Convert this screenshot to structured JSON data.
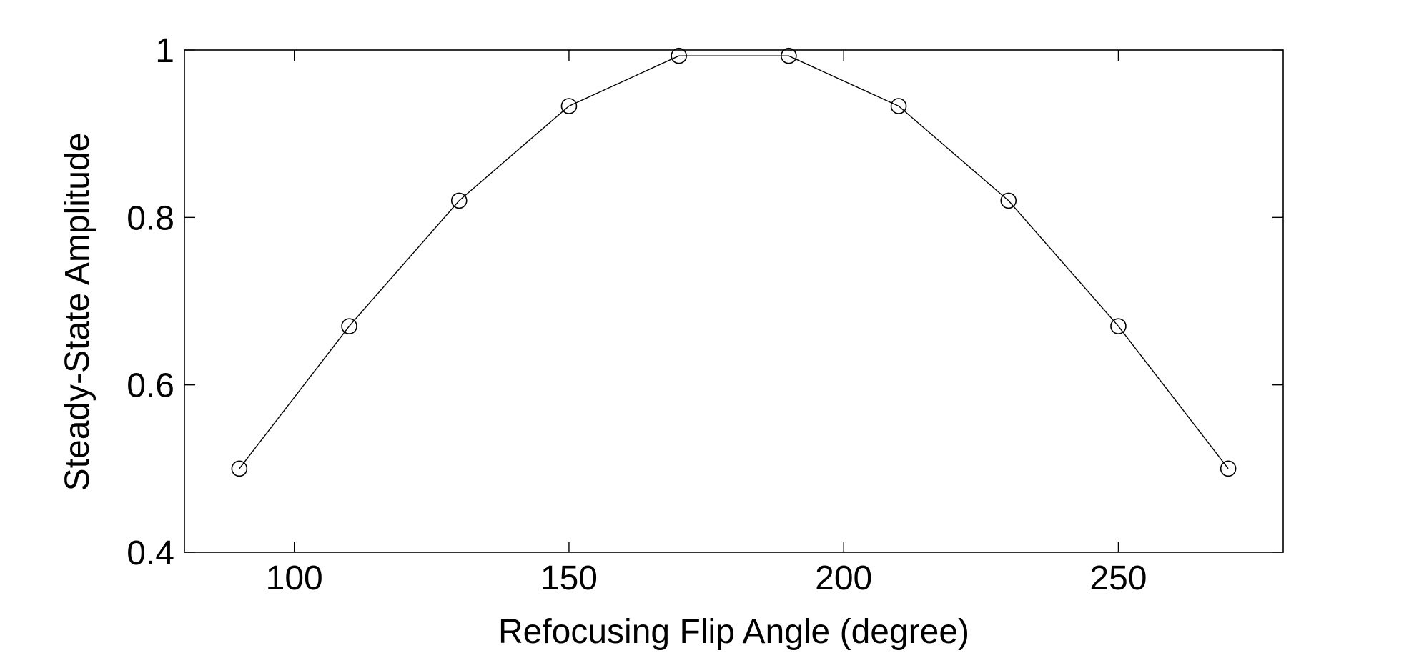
{
  "chart_data": {
    "type": "line",
    "title": "",
    "xlabel": "Refocusing Flip Angle (degree)",
    "ylabel": "Steady-State Amplitude",
    "xlim": [
      80,
      280
    ],
    "ylim": [
      0.4,
      1.0
    ],
    "xticks": [
      100,
      150,
      200,
      250
    ],
    "xtick_labels": [
      "100",
      "150",
      "200",
      "250"
    ],
    "yticks": [
      0.4,
      0.6,
      0.8,
      1.0
    ],
    "ytick_labels": [
      "0.4",
      "0.6",
      "0.8",
      "1"
    ],
    "grid": false,
    "legend": "none",
    "marker": "open-circle",
    "line_color": "#000000",
    "series": [
      {
        "x": [
          90,
          110,
          130,
          150,
          170,
          190,
          210,
          230,
          250,
          270
        ],
        "y": [
          0.5,
          0.67,
          0.82,
          0.933,
          0.993,
          0.993,
          0.933,
          0.82,
          0.67,
          0.5
        ]
      }
    ]
  }
}
